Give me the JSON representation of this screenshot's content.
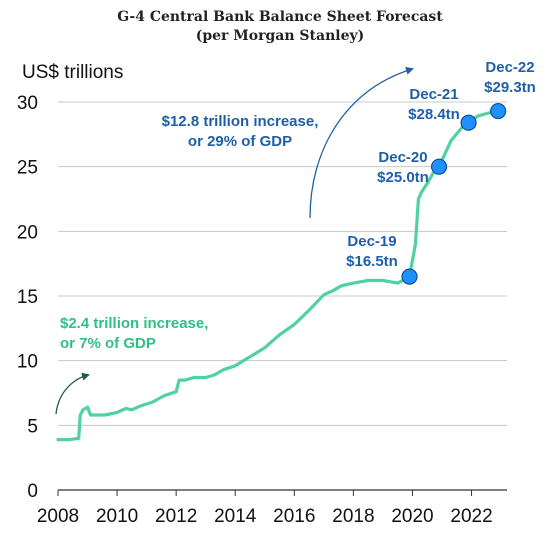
{
  "chart_data": {
    "type": "line",
    "title": "G-4 Central Bank Balance Sheet Forecast",
    "subtitle": "(per Morgan Stanley)",
    "ylabel": "US$ trillions",
    "xlabel": "",
    "xlim": [
      2008,
      2023.2
    ],
    "ylim": [
      0,
      30
    ],
    "xticks": [
      "2008",
      "2010",
      "2012",
      "2014",
      "2016",
      "2018",
      "2020",
      "2022"
    ],
    "yticks": [
      "0",
      "5",
      "10",
      "15",
      "20",
      "25",
      "30"
    ],
    "grid": "horizontal",
    "colors": {
      "line": "#4fd2a0",
      "points": "#1e90ff",
      "labels": "#1f5fa8",
      "green_text": "#2fbf85"
    },
    "series": [
      {
        "x": [
          2008.0,
          2008.4,
          2008.7,
          2008.75,
          2008.85,
          2009.0,
          2009.1,
          2009.3,
          2009.6,
          2010.0,
          2010.3,
          2010.5,
          2010.8,
          2011.2,
          2011.6,
          2012.0,
          2012.1,
          2012.3,
          2012.6,
          2013.0,
          2013.3,
          2013.6,
          2014.0,
          2014.5,
          2015.0,
          2015.5,
          2016.0,
          2016.5,
          2017.0,
          2017.3,
          2017.6,
          2018.0,
          2018.5,
          2019.0,
          2019.5,
          2019.9,
          2020.1,
          2020.2,
          2020.3,
          2020.5,
          2020.7,
          2020.9,
          2021.3,
          2021.7,
          2021.9,
          2022.2,
          2022.5,
          2022.9
        ],
        "y": [
          3.9,
          3.9,
          4.0,
          5.8,
          6.2,
          6.4,
          5.8,
          5.8,
          5.8,
          6.0,
          6.3,
          6.2,
          6.5,
          6.8,
          7.3,
          7.6,
          8.5,
          8.5,
          8.7,
          8.7,
          8.9,
          9.3,
          9.6,
          10.3,
          11.0,
          12.0,
          12.8,
          13.9,
          15.1,
          15.4,
          15.8,
          16.0,
          16.2,
          16.2,
          16.0,
          16.5,
          19.0,
          22.5,
          23.0,
          23.7,
          24.5,
          25.0,
          27.0,
          28.1,
          28.4,
          28.9,
          29.1,
          29.3
        ]
      }
    ],
    "highlights": [
      {
        "x": 2019.9,
        "y": 16.5,
        "date": "Dec-19",
        "value": "$16.5tn"
      },
      {
        "x": 2020.9,
        "y": 25.0,
        "date": "Dec-20",
        "value": "$25.0tn"
      },
      {
        "x": 2021.9,
        "y": 28.4,
        "date": "Dec-21",
        "value": "$28.4tn"
      },
      {
        "x": 2022.9,
        "y": 29.3,
        "date": "Dec-22",
        "value": "$29.3tn"
      }
    ],
    "annotations": [
      {
        "lines": [
          "$12.8 trillion increase,",
          "or 29% of GDP"
        ],
        "color": "blue"
      },
      {
        "lines": [
          "$2.4 trillion increase,",
          "or 7% of GDP"
        ],
        "color": "green"
      }
    ]
  }
}
